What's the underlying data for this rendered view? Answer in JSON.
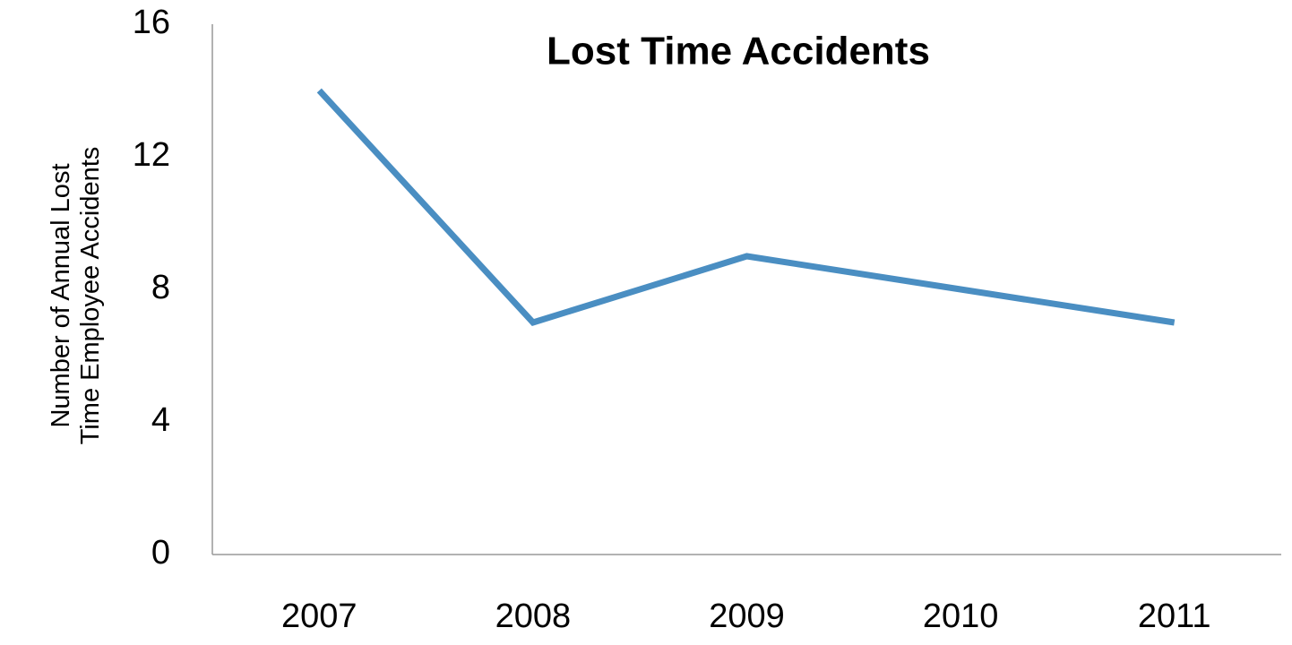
{
  "chart_data": {
    "type": "line",
    "title": "Lost Time Accidents",
    "y_label": "Number of Annual Lost Time Employee Accidents",
    "categories": [
      "2007",
      "2008",
      "2009",
      "2010",
      "2011"
    ],
    "values": [
      14,
      7,
      9,
      8,
      7
    ],
    "color": "#4a8ec2",
    "ylim": [
      0,
      16
    ],
    "yticks": [
      0,
      4,
      8,
      12,
      16
    ],
    "grid": false
  }
}
